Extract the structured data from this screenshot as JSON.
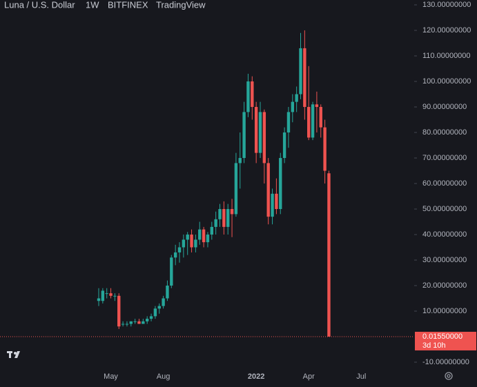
{
  "header": {
    "symbol": "Luna / U.S. Dollar",
    "interval": "1W",
    "exchange": "BITFINEX",
    "source": "TradingView"
  },
  "chart_data": {
    "type": "candlestick",
    "up_color": "#26a69a",
    "down_color": "#ef5350",
    "categories": [
      null,
      null,
      null,
      "May",
      null,
      null,
      null,
      null,
      null,
      null,
      null,
      null,
      null,
      null,
      null,
      null,
      "Aug",
      null,
      null,
      null,
      null,
      null,
      null,
      null,
      null,
      null,
      null,
      null,
      null,
      null,
      null,
      null,
      null,
      null,
      null,
      null,
      null,
      null,
      null,
      "2022",
      null,
      null,
      null,
      null,
      null,
      null,
      null,
      null,
      null,
      null,
      null,
      null,
      "Apr",
      null,
      null,
      null,
      null,
      null,
      null,
      null,
      null,
      null,
      null,
      null,
      null,
      "Jul"
    ],
    "open": [
      14,
      14,
      17,
      17,
      16,
      16,
      5,
      5,
      5,
      6,
      6,
      5,
      6,
      7,
      8,
      11,
      12,
      15,
      20,
      31,
      33,
      35,
      38,
      40,
      35,
      38,
      42,
      37,
      40,
      43,
      46,
      50,
      43,
      50,
      48,
      68,
      70,
      88,
      100,
      90,
      72,
      88,
      68,
      47,
      56,
      50,
      70,
      80,
      88,
      92,
      95,
      113,
      90,
      78,
      91,
      90,
      82,
      64,
      null,
      null,
      null,
      null,
      null,
      null,
      null,
      null
    ],
    "high": [
      19,
      19,
      19,
      19,
      17,
      17,
      6,
      6,
      6,
      7,
      7,
      7,
      8,
      9,
      12,
      13,
      16,
      22,
      32,
      36,
      37,
      40,
      41,
      42,
      40,
      45,
      43,
      41,
      45,
      49,
      52,
      53,
      52,
      54,
      72,
      80,
      92,
      103,
      102,
      92,
      92,
      89,
      70,
      58,
      62,
      72,
      82,
      90,
      95,
      98,
      119,
      120,
      106,
      92,
      96,
      91,
      85,
      65,
      null,
      null,
      null,
      null,
      null,
      null,
      null,
      null
    ],
    "low": [
      12,
      13,
      15,
      15,
      14,
      3,
      4,
      4,
      4,
      5,
      5,
      5,
      5,
      6,
      7,
      9,
      11,
      14,
      19,
      28,
      29,
      31,
      32,
      33,
      33,
      36,
      35,
      35,
      38,
      40,
      43,
      40,
      40,
      39,
      47,
      58,
      68,
      86,
      85,
      68,
      70,
      60,
      44,
      44,
      48,
      48,
      68,
      74,
      84,
      88,
      93,
      85,
      77,
      77,
      80,
      78,
      60,
      0.0155,
      null,
      null,
      null,
      null,
      null,
      null,
      null,
      null
    ],
    "close": [
      15,
      18,
      17,
      16,
      16,
      4,
      5,
      5,
      6,
      6,
      5,
      6,
      7,
      8,
      11,
      12,
      15,
      20,
      31,
      33,
      35,
      38,
      40,
      35,
      38,
      42,
      37,
      40,
      43,
      46,
      50,
      43,
      50,
      48,
      68,
      70,
      88,
      100,
      90,
      72,
      88,
      68,
      47,
      56,
      50,
      70,
      80,
      88,
      92,
      95,
      113,
      90,
      78,
      91,
      90,
      82,
      65,
      0.0155,
      null,
      null,
      null,
      null,
      null,
      null,
      null,
      null
    ],
    "ylim": [
      -12.7,
      131.9
    ],
    "yticks": [
      {
        "value": 130,
        "label": "130.00000000"
      },
      {
        "value": 120,
        "label": "120.00000000"
      },
      {
        "value": 110,
        "label": "110.00000000"
      },
      {
        "value": 100,
        "label": "100.00000000"
      },
      {
        "value": 90,
        "label": "90.00000000"
      },
      {
        "value": 80,
        "label": "80.00000000"
      },
      {
        "value": 70,
        "label": "70.00000000"
      },
      {
        "value": 60,
        "label": "60.00000000"
      },
      {
        "value": 50,
        "label": "50.00000000"
      },
      {
        "value": 40,
        "label": "40.00000000"
      },
      {
        "value": 30,
        "label": "30.00000000"
      },
      {
        "value": 20,
        "label": "20.00000000"
      },
      {
        "value": 10,
        "label": "10.00000000"
      },
      {
        "value": -10,
        "label": "-10.00000000"
      }
    ],
    "last_price": {
      "value": 0.0155,
      "label": "0.01550000"
    },
    "countdown": "3d 10h"
  }
}
